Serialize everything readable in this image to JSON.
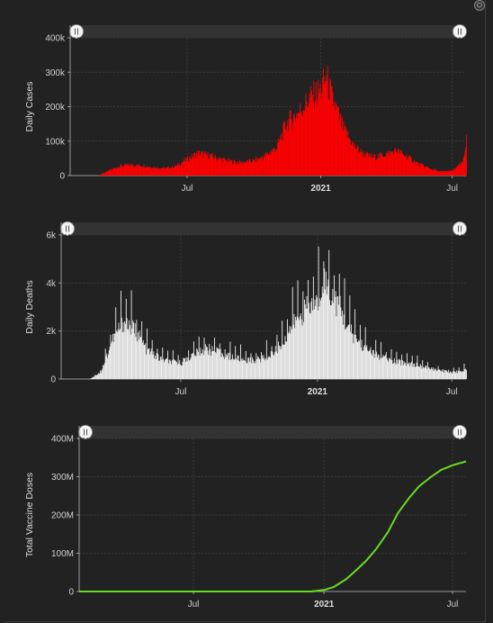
{
  "chart_data": [
    {
      "type": "bar",
      "ylabel": "Daily Cases",
      "color": "#ff0000",
      "ylim": [
        0,
        400000
      ],
      "yticks": [
        "0",
        "100k",
        "200k",
        "300k",
        "400k"
      ],
      "yticks_values": [
        0,
        100000,
        200000,
        300000,
        400000
      ],
      "xticks": [
        "Jul",
        "2021",
        "Jul"
      ],
      "xrange": [
        "2020-01-22",
        "2021-07-20"
      ],
      "series": [
        {
          "x": [
            "2020-03-01",
            "2020-03-15",
            "2020-04-01",
            "2020-04-15",
            "2020-05-01",
            "2020-05-15",
            "2020-06-01",
            "2020-06-15",
            "2020-07-01",
            "2020-07-15",
            "2020-08-01",
            "2020-08-15",
            "2020-09-01",
            "2020-09-15",
            "2020-10-01",
            "2020-10-15",
            "2020-11-01",
            "2020-11-15",
            "2020-12-01",
            "2020-12-15",
            "2021-01-01",
            "2021-01-08",
            "2021-01-15",
            "2021-02-01",
            "2021-02-15",
            "2021-03-01",
            "2021-03-15",
            "2021-04-01",
            "2021-04-15",
            "2021-05-01",
            "2021-05-15",
            "2021-06-01",
            "2021-06-15",
            "2021-07-01",
            "2021-07-15",
            "2021-07-20"
          ],
          "values": [
            1000,
            15000,
            30000,
            32000,
            30000,
            25000,
            22000,
            28000,
            50000,
            68000,
            60000,
            50000,
            42000,
            40000,
            45000,
            58000,
            85000,
            160000,
            190000,
            230000,
            260000,
            300000,
            240000,
            140000,
            90000,
            65000,
            55000,
            65000,
            75000,
            55000,
            35000,
            20000,
            12000,
            15000,
            40000,
            110000
          ]
        }
      ]
    },
    {
      "type": "bar",
      "ylabel": "Daily Deaths",
      "color": "#eeeeee",
      "ylim": [
        0,
        6000
      ],
      "yticks": [
        "0",
        "2k",
        "4k",
        "6k"
      ],
      "yticks_values": [
        0,
        2000,
        4000,
        6000
      ],
      "xticks": [
        "Jul",
        "2021",
        "Jul"
      ],
      "xrange": [
        "2020-01-22",
        "2021-07-20"
      ],
      "series": [
        {
          "x": [
            "2020-03-01",
            "2020-03-15",
            "2020-04-01",
            "2020-04-15",
            "2020-05-01",
            "2020-05-15",
            "2020-06-01",
            "2020-06-15",
            "2020-07-01",
            "2020-07-15",
            "2020-08-01",
            "2020-08-15",
            "2020-09-01",
            "2020-09-15",
            "2020-10-01",
            "2020-10-15",
            "2020-11-01",
            "2020-11-15",
            "2020-12-01",
            "2020-12-15",
            "2021-01-01",
            "2021-01-08",
            "2021-01-15",
            "2021-02-01",
            "2021-02-15",
            "2021-03-01",
            "2021-03-15",
            "2021-04-01",
            "2021-04-15",
            "2021-05-01",
            "2021-05-15",
            "2021-06-01",
            "2021-06-15",
            "2021-07-01",
            "2021-07-15",
            "2021-07-20"
          ],
          "values": [
            20,
            300,
            1800,
            2500,
            2100,
            1300,
            900,
            750,
            700,
            1000,
            1300,
            1200,
            1000,
            900,
            800,
            850,
            1100,
            1600,
            2500,
            3000,
            3300,
            4400,
            3900,
            3000,
            2000,
            1500,
            1100,
            900,
            750,
            700,
            600,
            450,
            350,
            300,
            350,
            450
          ]
        }
      ]
    },
    {
      "type": "line",
      "ylabel": "Total Vaccine Doses",
      "color": "#66dd22",
      "ylim": [
        0,
        400000000
      ],
      "yticks": [
        "0",
        "100M",
        "200M",
        "300M",
        "400M"
      ],
      "yticks_values": [
        0,
        100000000,
        200000000,
        300000000,
        400000000
      ],
      "xticks": [
        "Jul",
        "2021",
        "Jul"
      ],
      "xrange": [
        "2020-01-22",
        "2021-07-20"
      ],
      "series": [
        {
          "x": [
            "2020-01-22",
            "2020-12-14",
            "2021-01-01",
            "2021-01-15",
            "2021-02-01",
            "2021-02-15",
            "2021-03-01",
            "2021-03-15",
            "2021-04-01",
            "2021-04-15",
            "2021-05-01",
            "2021-05-15",
            "2021-06-01",
            "2021-06-15",
            "2021-07-01",
            "2021-07-20"
          ],
          "values": [
            0,
            0,
            4000000,
            12000000,
            32000000,
            55000000,
            80000000,
            110000000,
            155000000,
            205000000,
            245000000,
            275000000,
            300000000,
            318000000,
            330000000,
            340000000
          ]
        }
      ]
    }
  ]
}
